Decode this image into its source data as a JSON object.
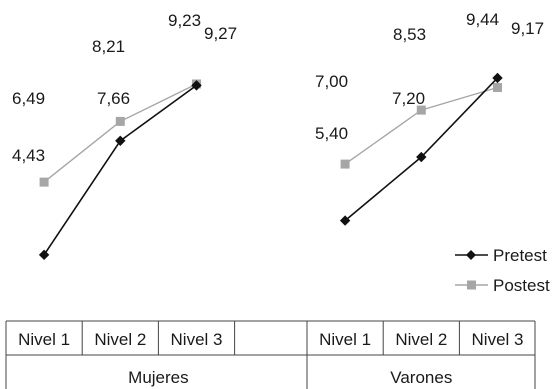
{
  "chart_data": {
    "type": "line",
    "groups": [
      {
        "name": "Mujeres",
        "categories": [
          "Nivel 1",
          "Nivel 2",
          "Nivel 3",
          ""
        ]
      },
      {
        "name": "Varones",
        "categories": [
          "Nivel 1",
          "Nivel 2",
          "Nivel 3"
        ]
      }
    ],
    "series": [
      {
        "name": "Pretest",
        "color": "#111111",
        "marker": "diamond",
        "segments": [
          {
            "group": "Mujeres",
            "values": [
              4.43,
              7.66,
              9.23
            ],
            "labels": [
              "4,43",
              "7,66",
              "9,23"
            ]
          },
          {
            "group": "Varones",
            "values": [
              5.4,
              7.2,
              9.44
            ],
            "labels": [
              "5,40",
              "7,20",
              "9,44"
            ]
          }
        ]
      },
      {
        "name": "Postest",
        "color": "#a6a6a6",
        "marker": "square",
        "segments": [
          {
            "group": "Mujeres",
            "values": [
              6.49,
              8.21,
              9.27
            ],
            "labels": [
              "6,49",
              "8,21",
              "9,27"
            ]
          },
          {
            "group": "Varones",
            "values": [
              7.0,
              8.53,
              9.17
            ],
            "labels": [
              "7,00",
              "8,53",
              "9,17"
            ]
          }
        ]
      }
    ],
    "title": "",
    "xlabel": "",
    "ylabel": "",
    "grid": false,
    "legend_position": "bottom-right"
  }
}
